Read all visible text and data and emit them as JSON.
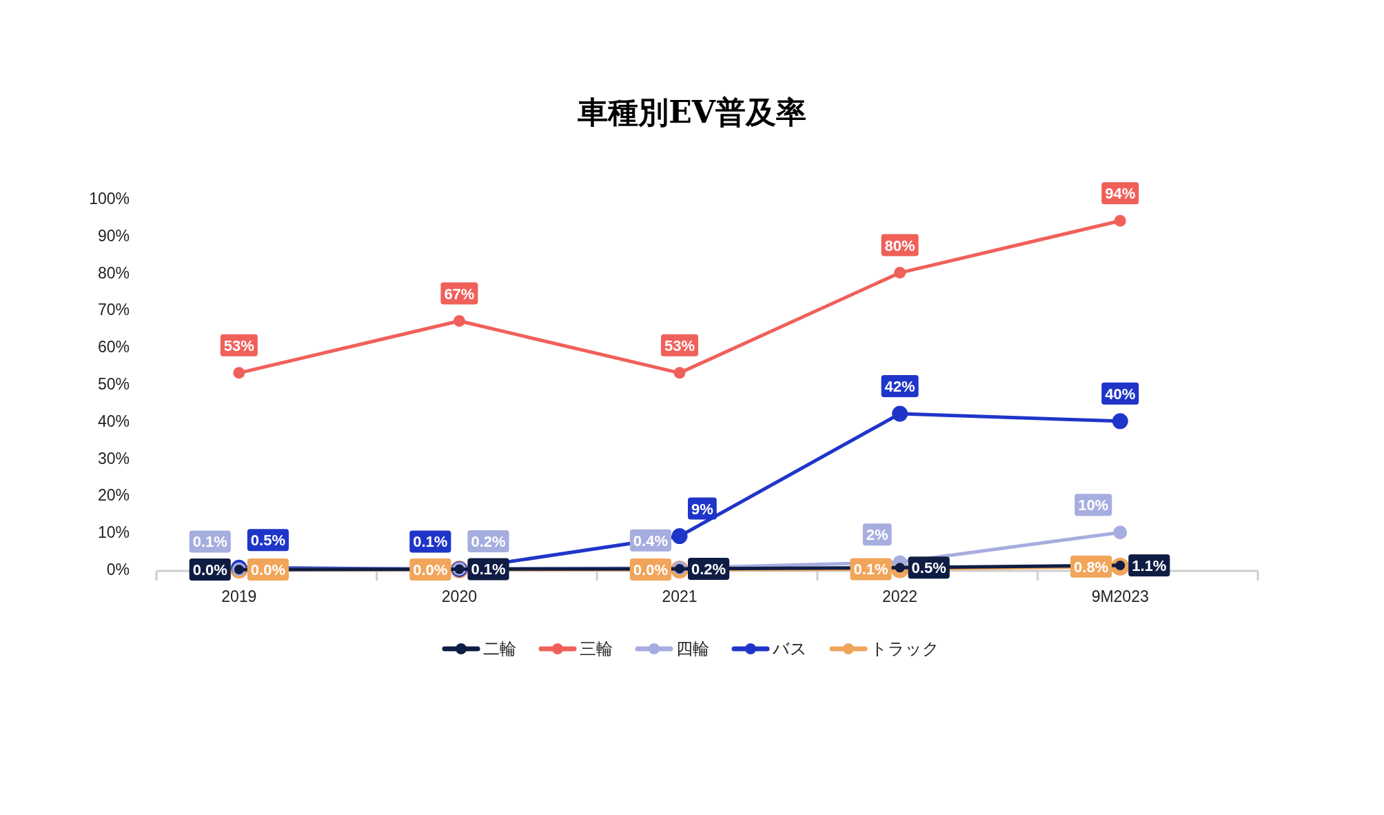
{
  "chart_data": {
    "type": "line",
    "title": "車種別EV普及率",
    "categories": [
      "2019",
      "2020",
      "2021",
      "2022",
      "9M2023"
    ],
    "ylim": [
      0,
      100
    ],
    "yticks": [
      {
        "value": 0,
        "label": "0%"
      },
      {
        "value": 10,
        "label": "10%"
      },
      {
        "value": 20,
        "label": "20%"
      },
      {
        "value": 30,
        "label": "30%"
      },
      {
        "value": 40,
        "label": "40%"
      },
      {
        "value": 50,
        "label": "50%"
      },
      {
        "value": 60,
        "label": "60%"
      },
      {
        "value": 70,
        "label": "70%"
      },
      {
        "value": 80,
        "label": "80%"
      },
      {
        "value": 90,
        "label": "90%"
      },
      {
        "value": 100,
        "label": "100%"
      }
    ],
    "legend": "bottom",
    "marker": "circle",
    "grid": false,
    "series": [
      {
        "name": "二輪",
        "color": "#0f1c44",
        "values": [
          0.0,
          0.1,
          0.2,
          0.5,
          1.1
        ],
        "value_labels": [
          "0.0%",
          "0.1%",
          "0.2%",
          "0.5%",
          "1.1%"
        ]
      },
      {
        "name": "三輪",
        "color": "#f0605a",
        "values": [
          53,
          67,
          53,
          80,
          94
        ],
        "value_labels": [
          "53%",
          "67%",
          "53%",
          "80%",
          "94%"
        ]
      },
      {
        "name": "四輪",
        "color": "#a6addf",
        "values": [
          0.1,
          0.2,
          0.4,
          2,
          10
        ],
        "value_labels": [
          "0.1%",
          "0.2%",
          "0.4%",
          "2%",
          "10%"
        ]
      },
      {
        "name": "バス",
        "color": "#1f35c9",
        "values": [
          0.5,
          0.1,
          9,
          42,
          40
        ],
        "value_labels": [
          "0.5%",
          "0.1%",
          "9%",
          "42%",
          "40%"
        ]
      },
      {
        "name": "トラック",
        "color": "#f0a55a",
        "values": [
          0.0,
          0.0,
          0.0,
          0.1,
          0.8
        ],
        "value_labels": [
          "0.0%",
          "0.0%",
          "0.0%",
          "0.1%",
          "0.8%"
        ]
      }
    ]
  }
}
